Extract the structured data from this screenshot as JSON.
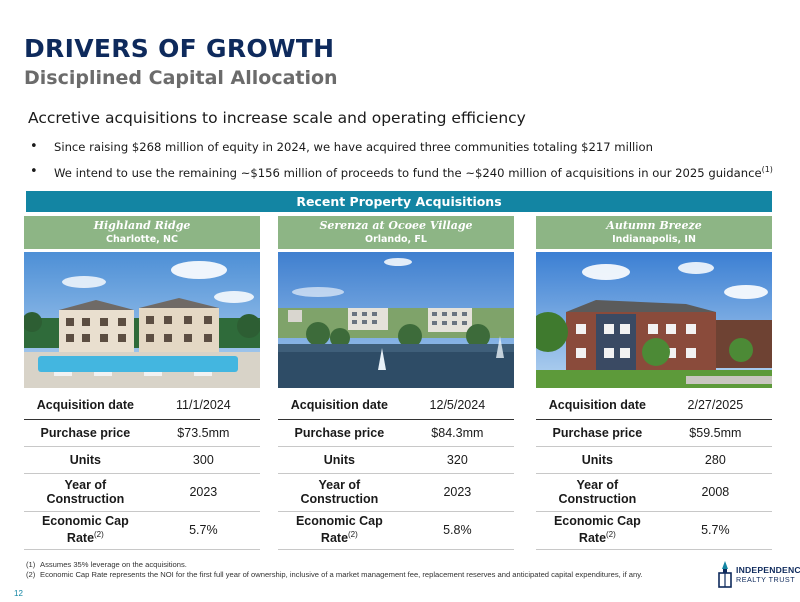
{
  "header": {
    "title": "DRIVERS OF GROWTH",
    "subtitle": "Disciplined Capital Allocation"
  },
  "lead": "Accretive acquisitions to increase scale and operating efficiency",
  "bullets": [
    {
      "text": "Since raising $268 million of equity in 2024, we have acquired three communities totaling $217 million",
      "sup": ""
    },
    {
      "text": "We intend to use the remaining ~$156 million of proceeds to fund the ~$240 million of acquisitions in our 2025 guidance",
      "sup": "(1)"
    }
  ],
  "banner": "Recent Property Acquisitions",
  "labels": {
    "acq_date": "Acquisition date",
    "price": "Purchase price",
    "units": "Units",
    "year": "Year of Construction",
    "cap": "Economic Cap Rate",
    "cap_sup": "(2)"
  },
  "properties": [
    {
      "name": "Highland Ridge",
      "city": "Charlotte, NC",
      "acq_date": "11/1/2024",
      "price": "$73.5mm",
      "units": "300",
      "year": "2023",
      "cap": "5.7%"
    },
    {
      "name": "Serenza at Ocoee Village",
      "city": "Orlando, FL",
      "acq_date": "12/5/2024",
      "price": "$84.3mm",
      "units": "320",
      "year": "2023",
      "cap": "5.8%"
    },
    {
      "name": "Autumn Breeze",
      "city": "Indianapolis, IN",
      "acq_date": "2/27/2025",
      "price": "$59.5mm",
      "units": "280",
      "year": "2008",
      "cap": "5.7%"
    }
  ],
  "footnotes": [
    {
      "num": "(1)",
      "text": "Assumes 35% leverage on the acquisitions."
    },
    {
      "num": "(2)",
      "text": "Economic Cap Rate represents the NOI for the first full year of ownership, inclusive of a market management fee, replacement reserves and anticipated capital expenditures, if any."
    }
  ],
  "page_number": "12",
  "logo": {
    "line1": "INDEPENDENCE",
    "line2": "REALTY TRUST",
    "color": "#0e2a5c"
  },
  "colors": {
    "navy": "#0e2a5c",
    "teal": "#1385a3",
    "green": "#8db585",
    "gray": "#6b6b6b"
  }
}
